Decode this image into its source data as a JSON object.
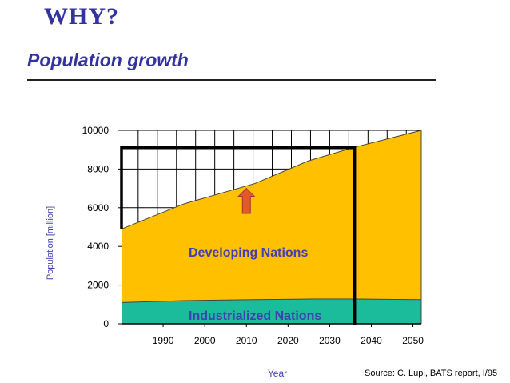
{
  "slide": {
    "title": "WHY?",
    "subtitle": "Population growth",
    "source": "Source: C. Lupi, BATS report, I/95"
  },
  "colors": {
    "title": "#3333a0",
    "developing": "#ffc000",
    "industrialized": "#1abc9c",
    "arrow": "#e05a2a",
    "label": "#4040b0"
  },
  "chart_data": {
    "type": "area",
    "stacked": true,
    "title": "",
    "xlabel": "Year",
    "ylabel": "Population [million]",
    "xlim": [
      1980,
      2052
    ],
    "ylim": [
      0,
      10000
    ],
    "xticks": [
      1990,
      2000,
      2010,
      2020,
      2030,
      2040,
      2050
    ],
    "yticks": [
      0,
      2000,
      4000,
      6000,
      8000,
      10000
    ],
    "x": [
      1980,
      1995,
      2012,
      2025,
      2036,
      2052
    ],
    "series": [
      {
        "name": "Industrialized Nations",
        "values": [
          1100,
          1200,
          1250,
          1280,
          1280,
          1250
        ]
      },
      {
        "name": "Developing Nations",
        "values": [
          3800,
          5000,
          6000,
          7150,
          7850,
          8750
        ]
      }
    ],
    "totals": [
      4900,
      6200,
      7250,
      8430,
      9130,
      10000
    ],
    "annotations": {
      "box": {
        "x0": 1980,
        "x1": 2036,
        "y0": 0,
        "y1": 9100
      },
      "arrow": {
        "x": 2010,
        "y_from": 5700,
        "y_to": 7000
      }
    }
  }
}
